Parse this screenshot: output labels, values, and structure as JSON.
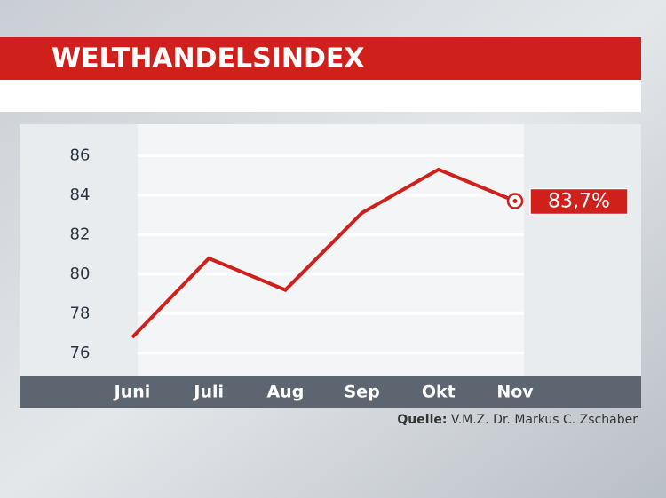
{
  "chart_data": {
    "type": "line",
    "title": "WELTHANDELSINDEX",
    "categories": [
      "Juni",
      "Juli",
      "Aug",
      "Sep",
      "Okt",
      "Nov"
    ],
    "values": [
      76.8,
      80.8,
      79.2,
      83.1,
      85.3,
      83.7
    ],
    "value_labels": [
      null,
      null,
      null,
      null,
      null,
      "83,7%"
    ],
    "color": "#d0201c",
    "ylim": [
      75,
      87.5
    ],
    "yticks": [
      76,
      78,
      80,
      82,
      84,
      86
    ],
    "grid": true,
    "source_label": "Quelle:",
    "source": "V.M.Z. Dr. Markus C. Zschaber"
  }
}
